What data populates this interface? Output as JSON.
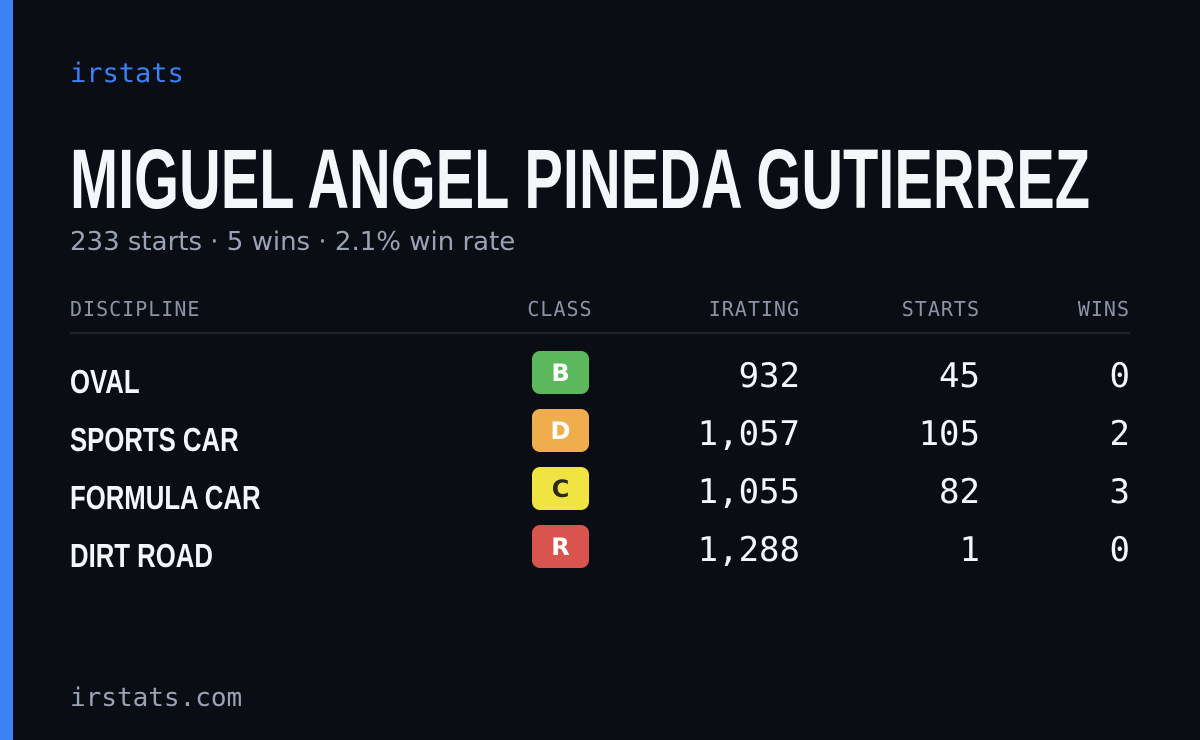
{
  "brand": "irstats",
  "name": "MIGUEL ANGEL PINEDA GUTIERREZ",
  "summary": "233 starts · 5 wins · 2.1% win rate",
  "table": {
    "headers": [
      "DISCIPLINE",
      "CLASS",
      "IRATING",
      "STARTS",
      "WINS"
    ],
    "rows": [
      {
        "discipline": "OVAL",
        "class": "B",
        "class_color": "#5cb85c",
        "irating": "932",
        "starts": "45",
        "wins": "0"
      },
      {
        "discipline": "SPORTS CAR",
        "class": "D",
        "class_color": "#f0ad4e",
        "irating": "1,057",
        "starts": "105",
        "wins": "2"
      },
      {
        "discipline": "FORMULA CAR",
        "class": "C",
        "class_color": "#f0e442",
        "irating": "1,055",
        "starts": "82",
        "wins": "3"
      },
      {
        "discipline": "DIRT ROAD",
        "class": "R",
        "class_color": "#d9534f",
        "irating": "1,288",
        "starts": "1",
        "wins": "0"
      }
    ]
  },
  "footer": "irstats.com"
}
